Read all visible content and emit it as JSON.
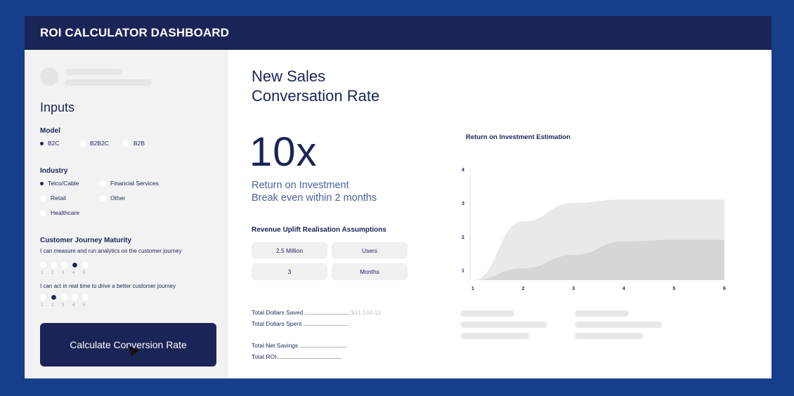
{
  "app": {
    "title": "ROI CALCULATOR DASHBOARD"
  },
  "sidebar": {
    "heading": "Inputs",
    "model": {
      "label": "Model",
      "options": [
        "B2C",
        "B2B2C",
        "B2B"
      ],
      "selected": "B2C"
    },
    "industry": {
      "label": "Industry",
      "options": [
        "Telco/Cable",
        "Financial Services",
        "Retail",
        "Other",
        "Healthcare"
      ],
      "selected": "Telco/Cable"
    },
    "maturity": {
      "label": "Customer Journey Maturity",
      "q1": {
        "text": "I can measure and run analytics on the customer journey",
        "scale": [
          "1",
          "2",
          "3",
          "4",
          "5"
        ],
        "selected": 4
      },
      "q2": {
        "text": "I can act in real time to drive a better customer journey",
        "scale": [
          "1",
          "2",
          "3",
          "4",
          "5"
        ],
        "selected": 2
      }
    },
    "calculate_button": "Calculate Conversion Rate"
  },
  "main": {
    "title_line1": "New Sales",
    "title_line2": "Conversation Rate",
    "roi_value": "10x",
    "roi_label": "Return on Investment",
    "breakeven": "Break even within 2 months",
    "assumptions": {
      "title": "Revenue Uplift Realisation Assumptions",
      "row1": {
        "value": "2.5 Million",
        "unit": "Users"
      },
      "row2": {
        "value": "3",
        "unit": "Months"
      }
    },
    "totals": {
      "saved_label": "Total Dollars Saved",
      "saved_dots": "...............................",
      "saved_value": "$41,144.10",
      "spent_label": "Total Dollars Spent",
      "spent_dots": "...............................",
      "net_label": "Total Net Savings",
      "net_dots": "................................",
      "roi_label": "Total ROI",
      "roi_dots": "............................................."
    }
  },
  "chart_data": {
    "type": "area",
    "title": "Return on Investment Estimation",
    "x": [
      1,
      2,
      3,
      4,
      5,
      6
    ],
    "x_ticks": [
      "1",
      "2",
      "3",
      "4",
      "5",
      "6"
    ],
    "y_ticks": [
      "1",
      "2",
      "3",
      "4"
    ],
    "ylim": [
      0.7,
      4
    ],
    "series": [
      {
        "values": [
          0.7,
          2.45,
          3.0,
          3.1,
          3.1,
          3.1
        ],
        "color": "#e9e9e9"
      },
      {
        "values": [
          0.7,
          1.05,
          1.45,
          1.85,
          1.9,
          1.9
        ],
        "color": "#d6d6d6"
      }
    ],
    "grid": false,
    "legend": "none"
  }
}
